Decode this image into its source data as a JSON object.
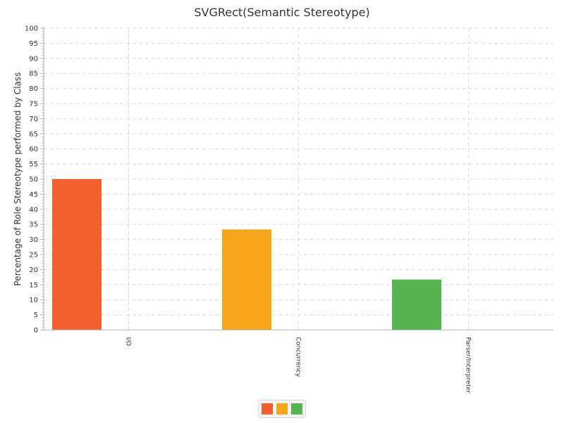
{
  "chart_data": {
    "type": "bar",
    "title": "SVGRect(Semantic Stereotype)",
    "xlabel": "",
    "ylabel": "Percentage of Role Stereotype performed by Class",
    "categories": [
      "I/O",
      "Concurrency",
      "Parser/Interpreter"
    ],
    "values": [
      50,
      33.3,
      16.7
    ],
    "colors": [
      "#f06030",
      "#f7a41d",
      "#56b452"
    ],
    "ylim": [
      0,
      100
    ],
    "ytick_step": 5,
    "ytick_labels": [
      "0",
      "5",
      "10",
      "15",
      "20",
      "25",
      "30",
      "35",
      "40",
      "45",
      "50",
      "55",
      "60",
      "65",
      "70",
      "75",
      "80",
      "85",
      "90",
      "95",
      "100"
    ],
    "grid": true,
    "legend": {
      "placement": "bottom-center",
      "entries": [
        "",
        "",
        ""
      ]
    }
  }
}
